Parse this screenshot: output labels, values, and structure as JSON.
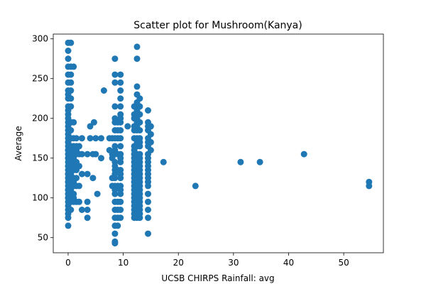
{
  "chart_data": {
    "type": "scatter",
    "title": "Scatter plot for Mushroom(Kanya)",
    "xlabel": "UCSB CHIRPS Rainfall: avg",
    "ylabel": "Average",
    "xlim": [
      -2.7,
      57.2
    ],
    "ylim": [
      31,
      306
    ],
    "x_ticks": [
      0,
      10,
      20,
      30,
      40,
      50
    ],
    "y_ticks": [
      50,
      100,
      150,
      200,
      250,
      300
    ],
    "grid": false,
    "color": "#1f77b4",
    "series": [
      {
        "x": [
          0,
          0,
          0,
          0,
          0,
          0,
          0,
          0,
          0,
          0,
          0,
          0,
          0,
          0,
          0,
          0,
          0,
          0,
          0,
          0,
          0,
          0,
          0,
          0,
          0,
          0,
          0,
          0,
          0,
          0,
          0,
          0,
          0,
          0,
          0,
          0,
          0,
          0,
          0,
          0,
          0,
          0,
          0,
          0,
          0,
          0,
          0,
          0.5,
          0.5,
          0.5,
          0.5,
          0.5,
          0.5,
          0.5,
          0.5,
          0.5,
          0.5,
          0.5,
          0.5,
          0.5,
          0.5,
          0.5,
          0.5,
          0.5,
          0.5,
          0.5,
          0.5,
          0.5,
          0.5,
          0.5,
          1.0,
          1.0,
          1.0,
          1.0,
          1.0,
          1.0,
          1.0,
          1.0,
          1.0,
          1.0,
          1.0,
          1.0,
          1.0,
          1.0,
          1.0,
          1.0,
          1.5,
          1.5,
          1.5,
          1.5,
          1.5,
          1.5,
          1.5,
          1.5,
          1.5,
          1.5,
          2.0,
          2.0,
          2.0,
          2.0,
          2.0,
          2.5,
          2.5,
          2.5,
          2.5,
          3.5,
          3.5,
          3.5,
          3.5,
          3.5,
          4.0,
          4.0,
          4.5,
          4.5,
          4.7,
          5.0,
          5.0,
          5.3,
          6.0,
          6.0,
          6.5,
          7.5,
          7.5,
          8.0,
          8.0,
          8.0,
          8.0,
          8.0,
          8.5,
          8.5,
          8.5,
          8.5,
          8.5,
          8.5,
          8.5,
          8.5,
          8.5,
          8.5,
          8.5,
          8.5,
          8.5,
          8.5,
          8.5,
          8.5,
          8.5,
          8.5,
          8.5,
          8.5,
          8.5,
          8.5,
          8.5,
          8.5,
          8.5,
          8.5,
          9.0,
          9.0,
          9.0,
          9.0,
          9.0,
          9.0,
          9.0,
          9.0,
          9.0,
          9.0,
          9.5,
          9.5,
          9.5,
          9.5,
          9.5,
          9.5,
          9.5,
          9.5,
          9.5,
          9.5,
          9.5,
          9.5,
          9.5,
          9.5,
          9.5,
          9.5,
          9.5,
          9.5,
          9.5,
          9.5,
          9.5,
          9.5,
          9.5,
          10.8,
          12.0,
          12.0,
          12.0,
          12.0,
          12.0,
          12.0,
          12.0,
          12.0,
          12.0,
          12.0,
          12.0,
          12.0,
          12.0,
          12.0,
          12.0,
          12.0,
          12.0,
          12.0,
          12.0,
          12.0,
          12.0,
          12.0,
          12.0,
          12.0,
          12.0,
          12.5,
          12.5,
          12.5,
          12.5,
          12.5,
          12.5,
          12.5,
          12.5,
          12.5,
          12.5,
          12.5,
          12.5,
          12.5,
          12.5,
          12.5,
          12.5,
          12.5,
          12.5,
          12.5,
          12.5,
          12.5,
          12.5,
          12.5,
          12.5,
          12.5,
          12.5,
          12.5,
          13.0,
          13.0,
          13.0,
          13.0,
          13.0,
          13.0,
          13.0,
          13.0,
          13.0,
          13.0,
          13.0,
          13.0,
          13.0,
          13.0,
          13.0,
          13.0,
          13.0,
          13.0,
          13.0,
          13.0,
          13.0,
          13.0,
          13.0,
          13.0,
          13.0,
          14.5,
          14.5,
          14.5,
          14.5,
          14.5,
          14.5,
          14.5,
          14.5,
          14.5,
          14.5,
          14.5,
          14.5,
          14.5,
          14.5,
          14.5,
          14.5,
          14.5,
          14.5,
          14.5,
          14.5,
          14.5,
          15.0,
          15.0,
          15.0,
          15.0,
          17.3,
          23.1,
          31.3,
          34.8,
          42.8,
          54.6,
          54.6
        ],
        "y": [
          295,
          285,
          275,
          265,
          255,
          245,
          235,
          225,
          215,
          205,
          195,
          190,
          185,
          180,
          175,
          170,
          165,
          160,
          155,
          150,
          145,
          140,
          135,
          130,
          125,
          120,
          115,
          110,
          105,
          100,
          95,
          90,
          85,
          80,
          75,
          65,
          230,
          210,
          200,
          170,
          160,
          150,
          140,
          130,
          120,
          110,
          100,
          295,
          265,
          255,
          245,
          235,
          225,
          215,
          195,
          185,
          175,
          165,
          155,
          145,
          135,
          125,
          115,
          105,
          95,
          85,
          175,
          150,
          130,
          110,
          265,
          195,
          175,
          165,
          155,
          145,
          135,
          125,
          115,
          105,
          95,
          160,
          140,
          120,
          100,
          150,
          175,
          165,
          155,
          145,
          135,
          125,
          115,
          95,
          160,
          140,
          165,
          155,
          140,
          115,
          95,
          175,
          155,
          130,
          85,
          155,
          130,
          95,
          85,
          75,
          190,
          175,
          155,
          125,
          195,
          175,
          155,
          105,
          175,
          150,
          235,
          175,
          160,
          175,
          155,
          150,
          125,
          115,
          275,
          255,
          245,
          215,
          195,
          185,
          175,
          165,
          155,
          145,
          135,
          125,
          115,
          105,
          95,
          85,
          75,
          65,
          55,
          45,
          43,
          200,
          160,
          140,
          130,
          110,
          195,
          175,
          155,
          135,
          115,
          95,
          85,
          75,
          65,
          185,
          255,
          245,
          235,
          225,
          215,
          205,
          195,
          185,
          175,
          165,
          155,
          145,
          135,
          125,
          115,
          105,
          95,
          85,
          75,
          200,
          150,
          130,
          110,
          190,
          215,
          205,
          185,
          165,
          145,
          135,
          115,
          95,
          85,
          75,
          200,
          190,
          175,
          155,
          150,
          140,
          125,
          120,
          110,
          105,
          100,
          90,
          80,
          160,
          130,
          290,
          275,
          240,
          230,
          220,
          210,
          195,
          185,
          175,
          165,
          155,
          150,
          145,
          135,
          125,
          115,
          105,
          95,
          85,
          80,
          75,
          200,
          190,
          170,
          140,
          130,
          100,
          225,
          215,
          205,
          185,
          175,
          165,
          155,
          145,
          135,
          125,
          115,
          105,
          95,
          85,
          75,
          195,
          170,
          150,
          140,
          120,
          110,
          100,
          90,
          80,
          130,
          210,
          195,
          185,
          175,
          165,
          155,
          145,
          135,
          125,
          115,
          105,
          95,
          85,
          75,
          55,
          190,
          170,
          150,
          140,
          130,
          120,
          190,
          180,
          170,
          160,
          145,
          115,
          145,
          145,
          155,
          120,
          115
        ]
      }
    ]
  }
}
